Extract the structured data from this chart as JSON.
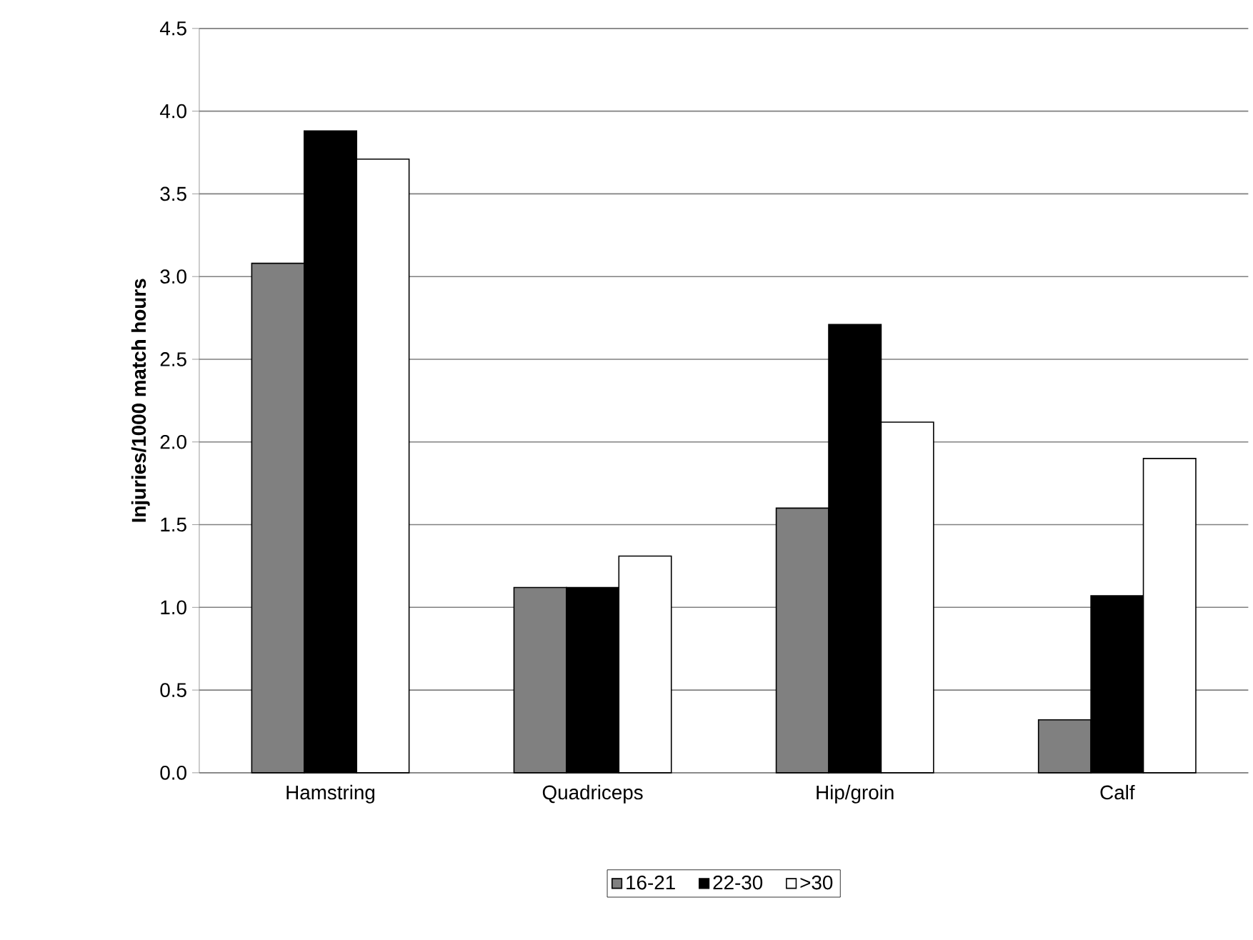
{
  "chart_data": {
    "type": "bar",
    "ylabel": "Injuries/1000 match hours",
    "categories": [
      "Hamstring",
      "Quadriceps",
      "Hip/groin",
      "Calf"
    ],
    "series": [
      {
        "name": "16-21",
        "color": "#808080",
        "values": [
          3.08,
          1.12,
          1.6,
          0.32
        ]
      },
      {
        "name": "22-30",
        "color": "#000000",
        "values": [
          3.88,
          1.12,
          2.71,
          1.07
        ]
      },
      {
        "name": ">30",
        "color": "#ffffff",
        "values": [
          3.71,
          1.31,
          2.12,
          1.9
        ]
      }
    ],
    "ylim": [
      0,
      4.5
    ],
    "yticks": [
      {
        "value": 0,
        "label": "0.0"
      },
      {
        "value": 0.5,
        "label": "0.5"
      },
      {
        "value": 1,
        "label": "1.0"
      },
      {
        "value": 1.5,
        "label": "1.5"
      },
      {
        "value": 2,
        "label": "2.0"
      },
      {
        "value": 2.5,
        "label": "2.5"
      },
      {
        "value": 3,
        "label": "3.0"
      },
      {
        "value": 3.5,
        "label": "3.5"
      },
      {
        "value": 4,
        "label": "4.0"
      },
      {
        "value": 4.5,
        "label": "4.5"
      }
    ],
    "grid": "y",
    "legend": "bottom"
  }
}
